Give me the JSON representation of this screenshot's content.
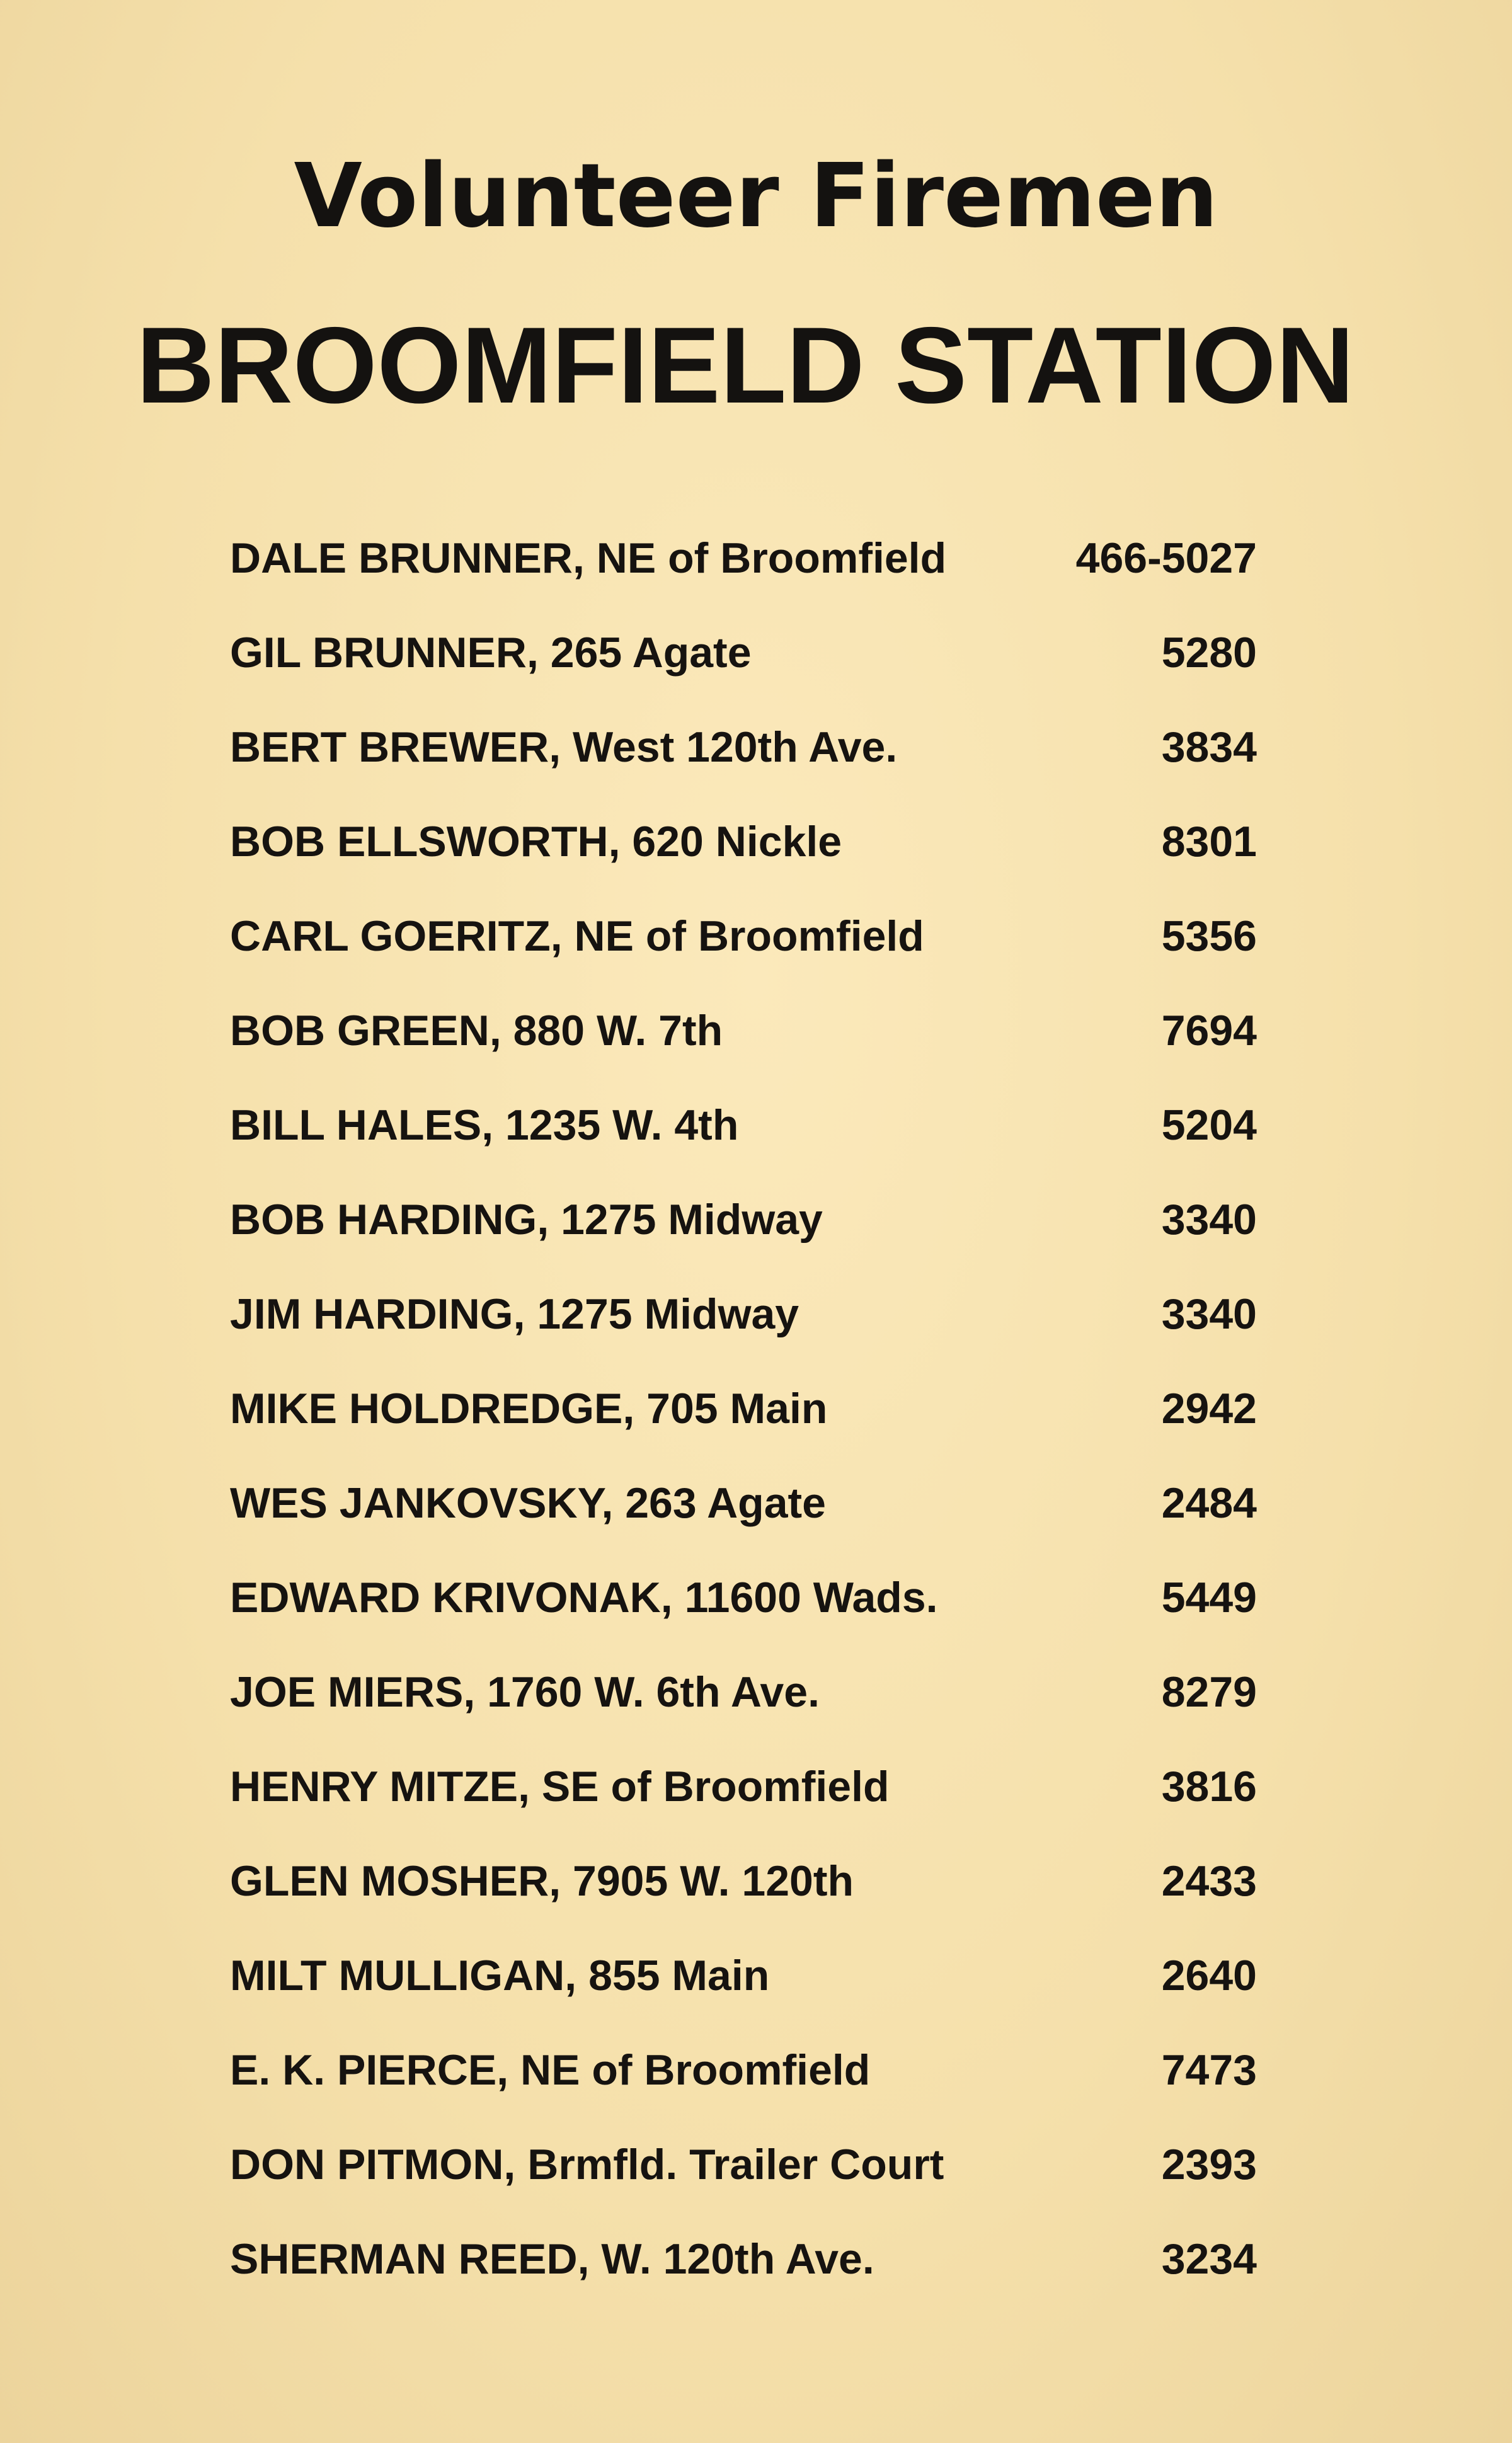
{
  "header": {
    "title": "Volunteer Firemen",
    "subtitle": "BROOMFIELD STATION"
  },
  "roster": [
    {
      "entry": "DALE BRUNNER, NE of Broomfield",
      "phone": "466-5027"
    },
    {
      "entry": "GIL BRUNNER, 265 Agate",
      "phone": "5280"
    },
    {
      "entry": "BERT BREWER, West 120th Ave.",
      "phone": "3834"
    },
    {
      "entry": "BOB ELLSWORTH, 620 Nickle",
      "phone": "8301"
    },
    {
      "entry": "CARL GOERITZ, NE of Broomfield",
      "phone": "5356"
    },
    {
      "entry": "BOB GREEN, 880 W. 7th",
      "phone": "7694"
    },
    {
      "entry": "BILL HALES, 1235 W. 4th",
      "phone": "5204"
    },
    {
      "entry": "BOB HARDING, 1275 Midway",
      "phone": "3340"
    },
    {
      "entry": "JIM HARDING, 1275 Midway",
      "phone": "3340"
    },
    {
      "entry": "MIKE HOLDREDGE, 705 Main",
      "phone": "2942"
    },
    {
      "entry": "WES JANKOVSKY, 263 Agate",
      "phone": "2484"
    },
    {
      "entry": "EDWARD KRIVONAK, 11600 Wads.",
      "phone": "5449"
    },
    {
      "entry": "JOE MIERS, 1760 W. 6th Ave.",
      "phone": "8279"
    },
    {
      "entry": "HENRY MITZE, SE of Broomfield",
      "phone": "3816"
    },
    {
      "entry": "GLEN MOSHER, 7905 W. 120th",
      "phone": "2433"
    },
    {
      "entry": "MILT MULLIGAN, 855 Main",
      "phone": "2640"
    },
    {
      "entry": "E. K. PIERCE, NE of Broomfield",
      "phone": "7473"
    },
    {
      "entry": "DON PITMON, Brmfld. Trailer Court",
      "phone": "2393"
    },
    {
      "entry": "SHERMAN REED, W. 120th Ave.",
      "phone": "3234"
    }
  ]
}
